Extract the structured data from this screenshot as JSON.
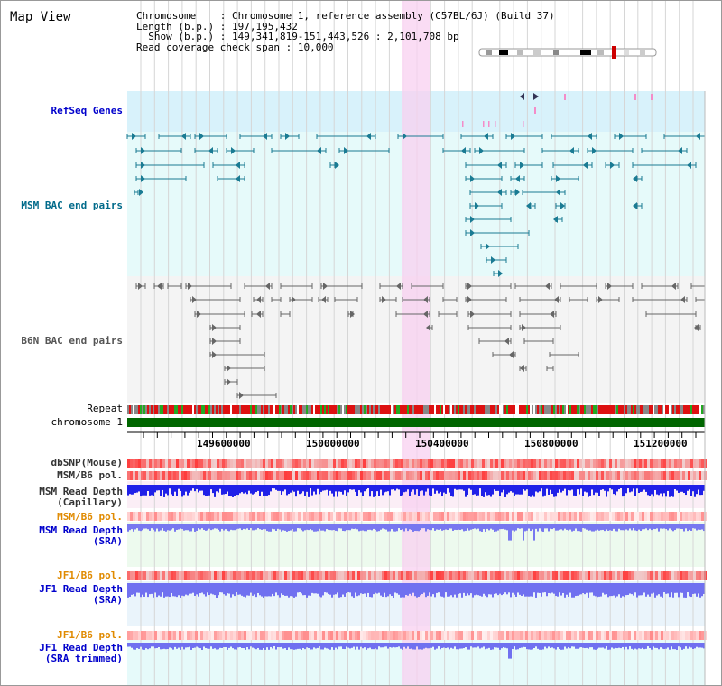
{
  "title": "Map View",
  "info": {
    "chromosome_key": "Chromosome    ",
    "chromosome_val": ": Chromosome 1, reference assembly (C57BL/6J) (Build 37)",
    "length_key": "Length (b.p.) ",
    "length_val": ": 197,195,432",
    "show_key": "  Show (b.p.) ",
    "show_val": ": 149,341,819-151,443,526 : 2,101,708 bp",
    "coverage_key": "Read coverage check span ",
    "coverage_val": ": 10,000"
  },
  "tracks": {
    "refseq": "RefSeq Genes",
    "msm_bac": "MSM BAC end pairs",
    "b6n_bac": "B6N BAC end pairs",
    "repeat": "Repeat",
    "chromosome": "chromosome 1",
    "dbsnp": "dbSNP(Mouse)",
    "msm_b6_pol": "MSM/B6 pol.",
    "msm_depth_cap_1": "MSM Read Depth",
    "msm_depth_cap_2": "(Capillary)",
    "msm_b6_pol_2": "MSM/B6 pol.",
    "msm_depth_sra_1": "MSM Read Depth",
    "msm_depth_sra_2": "(SRA)",
    "jf1_b6_pol": "JF1/B6 pol.",
    "jf1_depth_sra_1": "JF1 Read Depth",
    "jf1_depth_sra_2": "(SRA)",
    "jf1_b6_pol_2": "JF1/B6 pol.",
    "jf1_depth_trim_1": "JF1 Read Depth",
    "jf1_depth_trim_2": "(SRA trimmed)"
  },
  "axis": {
    "ticks": [
      "149600000",
      "150000000",
      "150400000",
      "150800000",
      "151200000"
    ]
  },
  "colors": {
    "refseq_label": "#0000cc",
    "msm_label": "#006a8a",
    "b6n_label": "#444444",
    "pol_orange": "#e08a00",
    "depth_blue": "#0000cc",
    "highlight": "#f8d0f0",
    "chromosome_bar": "#006600"
  }
}
